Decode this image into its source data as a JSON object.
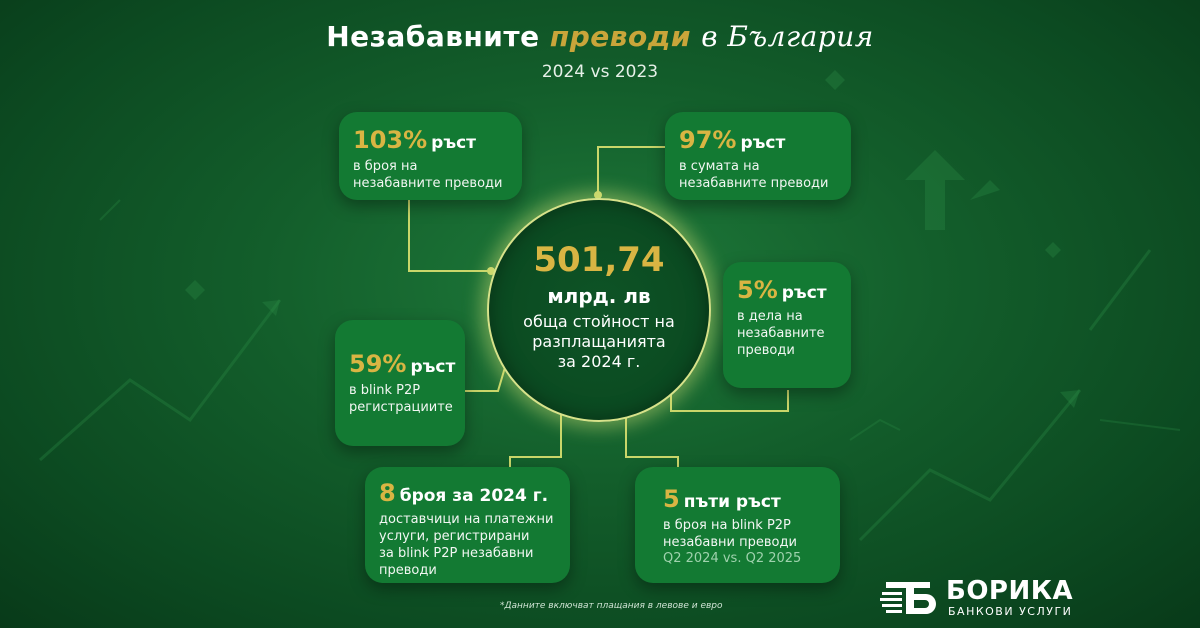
{
  "title": {
    "part1": "Незабавните",
    "accent": "преводи",
    "part2": "в България",
    "subtitle": "2024 vs 2023"
  },
  "center": {
    "value": "501,74",
    "unit": "млрд. лв",
    "line1": "обща стойност на",
    "line2": "разплащанията",
    "line3": "за 2024 г."
  },
  "stats": [
    {
      "big": "103%",
      "word": "ръст",
      "desc": [
        "в броя на",
        "незабавните преводи"
      ]
    },
    {
      "big": "97%",
      "word": "ръст",
      "desc": [
        "в сумата на",
        "незабавните преводи"
      ]
    },
    {
      "big": "5%",
      "word": "ръст",
      "desc": [
        "в дела на",
        "незабавните",
        "преводи"
      ]
    },
    {
      "big": "59%",
      "word": "ръст",
      "desc": [
        "в blink P2P",
        "регистрациите"
      ]
    },
    {
      "big": "8",
      "word": "броя за 2024 г.",
      "desc": [
        "доставчици на платежни",
        "услуги, регистрирани",
        "за blink P2P незабавни",
        "преводи"
      ]
    },
    {
      "big": "5",
      "word": "пъти ръст",
      "desc": [
        "в броя на blink P2P",
        "незабавни преводи"
      ],
      "note": "Q2 2024 vs. Q2 2025"
    }
  ],
  "footnote": "*Данните включват плащания в левове и евро",
  "logo": {
    "brand": "БОРИКА",
    "tagline": "БАНКОВИ УСЛУГИ"
  },
  "colors": {
    "accent": "#d9b543",
    "card": "#137a33",
    "background": "#0c4a21",
    "connector": "#c9d66a"
  }
}
